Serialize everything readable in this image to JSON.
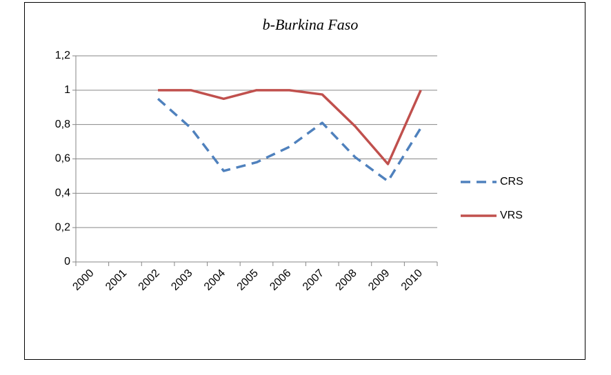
{
  "chart_data": {
    "type": "line",
    "title": "b-Burkina Faso",
    "categories": [
      "2000",
      "2001",
      "2002",
      "2003",
      "2004",
      "2005",
      "2006",
      "2007",
      "2008",
      "2009",
      "2010"
    ],
    "series": [
      {
        "name": "CRS",
        "color": "#4f81bd",
        "dash": true,
        "values": [
          null,
          null,
          0.95,
          0.78,
          0.53,
          0.58,
          0.67,
          0.81,
          0.61,
          0.47,
          0.78
        ]
      },
      {
        "name": "VRS",
        "color": "#c0504d",
        "dash": false,
        "values": [
          null,
          null,
          1,
          1,
          0.95,
          1,
          1,
          0.975,
          0.79,
          0.57,
          1
        ]
      }
    ],
    "ylim": [
      0,
      1.2
    ],
    "yticks": [
      0,
      {
        "value": 0.2,
        "label": "0,2"
      },
      {
        "value": 0.4,
        "label": "0,4"
      },
      {
        "value": 0.6,
        "label": "0,6"
      },
      {
        "value": 0.8,
        "label": "0,8"
      },
      1,
      {
        "value": 1.2,
        "label": "1,2"
      }
    ],
    "grid": true,
    "legend": "right"
  }
}
